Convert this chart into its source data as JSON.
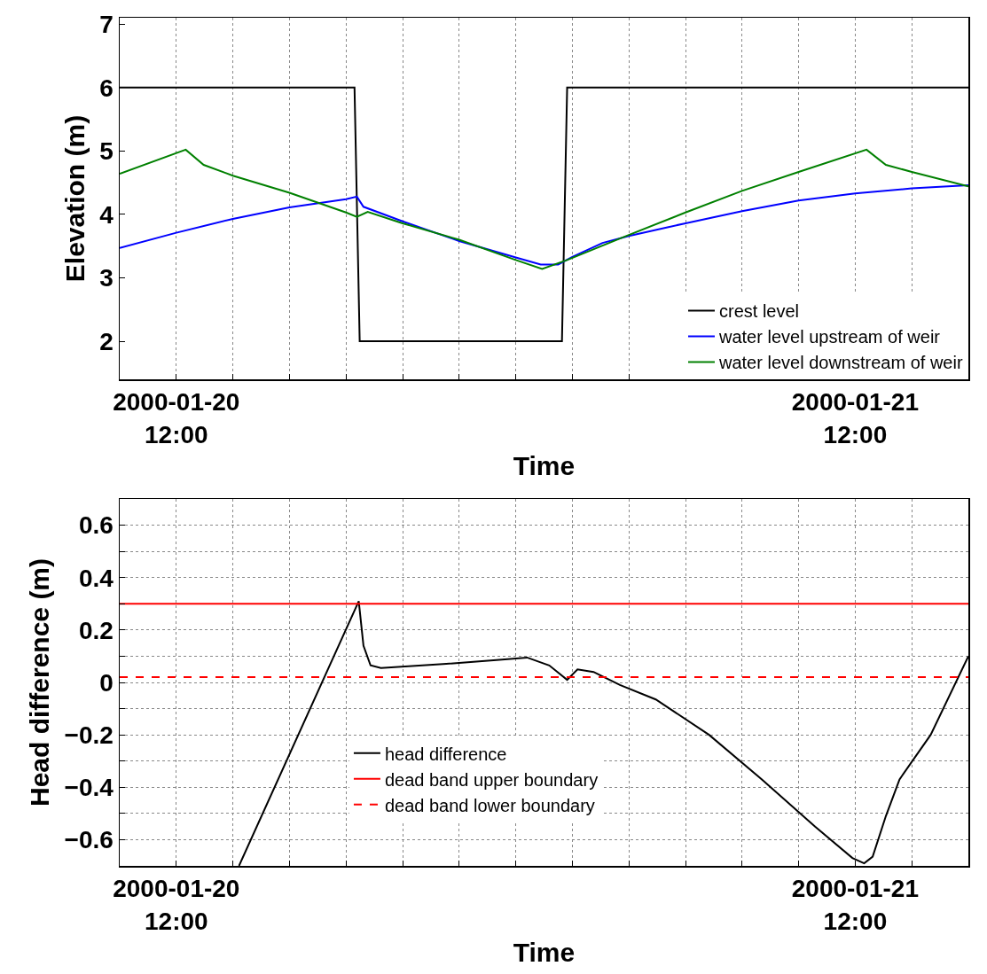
{
  "chart_data": [
    {
      "type": "line",
      "ylabel": "Elevation (m)",
      "xlabel": "Time",
      "xlim": [
        "2000-01-20T10:00",
        "2000-01-21T16:00"
      ],
      "xticks": [
        {
          "value": "2000-01-20T10:00",
          "label": null
        },
        {
          "value": "2000-01-20T12:00",
          "label": "2000-01-20\n12:00"
        },
        {
          "value": "2000-01-20T14:00",
          "label": null
        },
        {
          "value": "2000-01-20T16:00",
          "label": null
        },
        {
          "value": "2000-01-20T18:00",
          "label": null
        },
        {
          "value": "2000-01-20T20:00",
          "label": null
        },
        {
          "value": "2000-01-20T22:00",
          "label": null
        },
        {
          "value": "2000-01-21T00:00",
          "label": null
        },
        {
          "value": "2000-01-21T02:00",
          "label": null
        },
        {
          "value": "2000-01-21T04:00",
          "label": null
        },
        {
          "value": "2000-01-21T06:00",
          "label": null
        },
        {
          "value": "2000-01-21T08:00",
          "label": null
        },
        {
          "value": "2000-01-21T10:00",
          "label": null
        },
        {
          "value": "2000-01-21T12:00",
          "label": "2000-01-21\n12:00"
        },
        {
          "value": "2000-01-21T14:00",
          "label": null
        },
        {
          "value": "2000-01-21T16:00",
          "label": null
        }
      ],
      "ylim": [
        1.4,
        7.1
      ],
      "yticks": [
        2,
        3,
        4,
        5,
        6,
        7
      ],
      "grid": "x",
      "legend": "bottom right",
      "series": [
        {
          "name": "crest level",
          "color": "#000000",
          "x": [
            "2000-01-20T10:00",
            "2000-01-20T18:18",
            "2000-01-20T18:29",
            "2000-01-21T01:38",
            "2000-01-21T01:49",
            "2000-01-21T16:00"
          ],
          "values": [
            6,
            6,
            2,
            2,
            6,
            6
          ]
        },
        {
          "name": "water level upstream of weir",
          "color": "#0000ff",
          "x": [
            "2000-01-20T10:00",
            "2000-01-20T12:00",
            "2000-01-20T14:00",
            "2000-01-20T16:00",
            "2000-01-20T18:00",
            "2000-01-20T18:23",
            "2000-01-20T18:37",
            "2000-01-20T20:00",
            "2000-01-20T22:00",
            "2000-01-21T00:00",
            "2000-01-21T00:53",
            "2000-01-21T01:30",
            "2000-01-21T02:00",
            "2000-01-21T03:04",
            "2000-01-21T04:00",
            "2000-01-21T06:00",
            "2000-01-21T08:00",
            "2000-01-21T10:00",
            "2000-01-21T12:00",
            "2000-01-21T14:00",
            "2000-01-21T16:00"
          ],
          "values": [
            3.47,
            3.71,
            3.93,
            4.11,
            4.24,
            4.28,
            4.12,
            3.89,
            3.58,
            3.32,
            3.21,
            3.21,
            3.33,
            3.55,
            3.66,
            3.86,
            4.05,
            4.22,
            4.33,
            4.41,
            4.46
          ]
        },
        {
          "name": "water level downstream of weir",
          "color": "#008000",
          "x": [
            "2000-01-20T10:00",
            "2000-01-20T12:20",
            "2000-01-20T12:58",
            "2000-01-20T14:00",
            "2000-01-20T16:00",
            "2000-01-20T18:00",
            "2000-01-20T18:23",
            "2000-01-20T18:46",
            "2000-01-20T20:00",
            "2000-01-20T22:00",
            "2000-01-21T00:00",
            "2000-01-21T00:56",
            "2000-01-21T01:49",
            "2000-01-21T03:41",
            "2000-01-21T06:00",
            "2000-01-21T08:00",
            "2000-01-21T10:00",
            "2000-01-21T12:24",
            "2000-01-21T13:05",
            "2000-01-21T14:00",
            "2000-01-21T16:00"
          ],
          "values": [
            4.64,
            5.02,
            4.78,
            4.61,
            4.34,
            4.03,
            3.96,
            4.04,
            3.86,
            3.6,
            3.28,
            3.14,
            3.28,
            3.62,
            4.03,
            4.37,
            4.67,
            5.02,
            4.78,
            4.67,
            4.44
          ]
        }
      ]
    },
    {
      "type": "line",
      "ylabel": "Head difference (m)",
      "xlabel": "Time",
      "xlim": [
        "2000-01-20T10:00",
        "2000-01-21T16:00"
      ],
      "xticks": [
        {
          "value": "2000-01-20T10:00",
          "label": null
        },
        {
          "value": "2000-01-20T12:00",
          "label": "2000-01-20\n12:00"
        },
        {
          "value": "2000-01-20T14:00",
          "label": null
        },
        {
          "value": "2000-01-20T16:00",
          "label": null
        },
        {
          "value": "2000-01-20T18:00",
          "label": null
        },
        {
          "value": "2000-01-20T20:00",
          "label": null
        },
        {
          "value": "2000-01-20T22:00",
          "label": null
        },
        {
          "value": "2000-01-21T00:00",
          "label": null
        },
        {
          "value": "2000-01-21T02:00",
          "label": null
        },
        {
          "value": "2000-01-21T04:00",
          "label": null
        },
        {
          "value": "2000-01-21T06:00",
          "label": null
        },
        {
          "value": "2000-01-21T08:00",
          "label": null
        },
        {
          "value": "2000-01-21T10:00",
          "label": null
        },
        {
          "value": "2000-01-21T12:00",
          "label": "2000-01-21\n12:00"
        },
        {
          "value": "2000-01-21T14:00",
          "label": null
        },
        {
          "value": "2000-01-21T16:00",
          "label": null
        }
      ],
      "ylim": [
        -0.7,
        0.7
      ],
      "yticks": [
        {
          "value": -0.7,
          "label": null
        },
        {
          "value": -0.6,
          "label": "−0.6"
        },
        {
          "value": -0.5,
          "label": null
        },
        {
          "value": -0.4,
          "label": "−0.4"
        },
        {
          "value": -0.3,
          "label": null
        },
        {
          "value": -0.2,
          "label": "−0.2"
        },
        {
          "value": -0.1,
          "label": null
        },
        0,
        {
          "value": 0.1,
          "label": null
        },
        0.2,
        {
          "value": 0.3,
          "label": null
        },
        0.4,
        {
          "value": 0.5,
          "label": null
        },
        0.6,
        {
          "value": 0.7,
          "label": null
        }
      ],
      "grid": true,
      "legend": "bottom",
      "series": [
        {
          "name": "head difference",
          "color": "#000000",
          "x": [
            "2000-01-20T14:13",
            "2000-01-20T18:27",
            "2000-01-20T18:37",
            "2000-01-20T18:52",
            "2000-01-20T19:14",
            "2000-01-20T21:26",
            "2000-01-20T23:19",
            "2000-01-21T00:24",
            "2000-01-21T01:11",
            "2000-01-21T01:49",
            "2000-01-21T02:11",
            "2000-01-21T02:45",
            "2000-01-21T03:41",
            "2000-01-21T04:57",
            "2000-01-21T06:50",
            "2000-01-21T08:42",
            "2000-01-21T10:35",
            "2000-01-21T11:54",
            "2000-01-21T12:19",
            "2000-01-21T12:37",
            "2000-01-21T13:05",
            "2000-01-21T13:34",
            "2000-01-21T14:40",
            "2000-01-21T16:00"
          ],
          "values": [
            -0.7,
            0.31,
            0.14,
            0.065,
            0.055,
            0.07,
            0.085,
            0.095,
            0.065,
            0.01,
            0.05,
            0.04,
            -0.01,
            -0.065,
            -0.2,
            -0.37,
            -0.55,
            -0.67,
            -0.69,
            -0.665,
            -0.51,
            -0.37,
            -0.2,
            0.1
          ]
        }
      ],
      "ref_lines": [
        {
          "axis": "y",
          "value": 0.3,
          "label": "dead band upper boundary",
          "color": "#ff0000",
          "line_style": "solid"
        },
        {
          "axis": "y",
          "value": 0.02,
          "label": "dead band lower boundary",
          "color": "#ff0000",
          "line_style": "dashed"
        }
      ]
    }
  ]
}
